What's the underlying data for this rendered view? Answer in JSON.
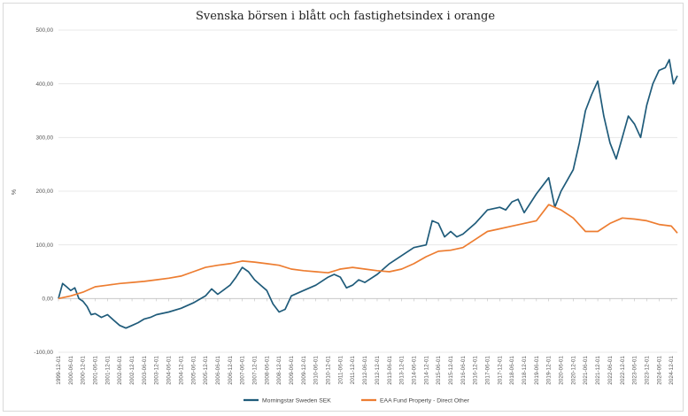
{
  "chart_data": {
    "type": "line",
    "title": "Svenska börsen i blått och fastighetsindex i orange",
    "ylabel": "%",
    "xlabel": "",
    "ylim": [
      -100,
      500
    ],
    "yticks": [
      "-100,00",
      "0,00",
      "100,00",
      "200,00",
      "300,00",
      "400,00",
      "500,00"
    ],
    "ytick_values": [
      -100,
      0,
      100,
      200,
      300,
      400,
      500
    ],
    "grid": "horizontal",
    "legend": "bottom-center",
    "x_ticks": [
      "1999-12-01",
      "2000-06-01",
      "2000-12-01",
      "2001-06-01",
      "2001-12-01",
      "2002-06-01",
      "2002-12-01",
      "2003-06-01",
      "2003-12-01",
      "2004-06-01",
      "2004-12-01",
      "2005-06-01",
      "2005-12-01",
      "2006-06-01",
      "2006-12-01",
      "2007-06-01",
      "2007-12-01",
      "2008-06-01",
      "2008-12-01",
      "2009-06-01",
      "2009-12-01",
      "2010-06-01",
      "2010-12-01",
      "2011-06-01",
      "2011-12-01",
      "2012-06-01",
      "2012-12-01",
      "2013-06-01",
      "2013-12-01",
      "2014-06-01",
      "2014-12-01",
      "2015-06-01",
      "2015-12-01",
      "2016-06-01",
      "2016-12-01",
      "2017-06-01",
      "2017-12-01",
      "2018-06-01",
      "2018-12-01",
      "2019-06-01",
      "2019-12-01",
      "2020-06-01",
      "2020-12-01",
      "2021-06-01",
      "2021-12-01",
      "2022-06-01",
      "2022-12-01",
      "2023-06-01",
      "2023-12-01",
      "2024-06-01",
      "2024-12-01"
    ],
    "series": [
      {
        "name": "Morningstar Sweden SEK",
        "color": "#1f5b7a",
        "points": [
          [
            "1999-12-01",
            0
          ],
          [
            "2000-02-01",
            28
          ],
          [
            "2000-04-01",
            22
          ],
          [
            "2000-06-01",
            15
          ],
          [
            "2000-08-01",
            20
          ],
          [
            "2000-10-01",
            0
          ],
          [
            "2000-12-01",
            -5
          ],
          [
            "2001-02-01",
            -15
          ],
          [
            "2001-04-01",
            -30
          ],
          [
            "2001-06-01",
            -28
          ],
          [
            "2001-09-01",
            -35
          ],
          [
            "2001-12-01",
            -30
          ],
          [
            "2002-03-01",
            -40
          ],
          [
            "2002-06-01",
            -50
          ],
          [
            "2002-09-01",
            -55
          ],
          [
            "2002-12-01",
            -50
          ],
          [
            "2003-03-01",
            -45
          ],
          [
            "2003-06-01",
            -38
          ],
          [
            "2003-09-01",
            -35
          ],
          [
            "2003-12-01",
            -30
          ],
          [
            "2004-06-01",
            -25
          ],
          [
            "2004-12-01",
            -18
          ],
          [
            "2005-06-01",
            -8
          ],
          [
            "2005-12-01",
            5
          ],
          [
            "2006-03-01",
            18
          ],
          [
            "2006-06-01",
            8
          ],
          [
            "2006-12-01",
            25
          ],
          [
            "2007-03-01",
            40
          ],
          [
            "2007-06-01",
            58
          ],
          [
            "2007-09-01",
            50
          ],
          [
            "2007-12-01",
            35
          ],
          [
            "2008-03-01",
            25
          ],
          [
            "2008-06-01",
            15
          ],
          [
            "2008-09-01",
            -10
          ],
          [
            "2008-12-01",
            -25
          ],
          [
            "2009-03-01",
            -20
          ],
          [
            "2009-06-01",
            5
          ],
          [
            "2009-12-01",
            15
          ],
          [
            "2010-06-01",
            25
          ],
          [
            "2010-12-01",
            40
          ],
          [
            "2011-03-01",
            45
          ],
          [
            "2011-06-01",
            40
          ],
          [
            "2011-09-01",
            20
          ],
          [
            "2011-12-01",
            25
          ],
          [
            "2012-03-01",
            35
          ],
          [
            "2012-06-01",
            30
          ],
          [
            "2012-12-01",
            45
          ],
          [
            "2013-06-01",
            65
          ],
          [
            "2013-12-01",
            80
          ],
          [
            "2014-06-01",
            95
          ],
          [
            "2014-12-01",
            100
          ],
          [
            "2015-03-01",
            145
          ],
          [
            "2015-06-01",
            140
          ],
          [
            "2015-09-01",
            115
          ],
          [
            "2015-12-01",
            125
          ],
          [
            "2016-03-01",
            115
          ],
          [
            "2016-06-01",
            120
          ],
          [
            "2016-12-01",
            140
          ],
          [
            "2017-06-01",
            165
          ],
          [
            "2017-12-01",
            170
          ],
          [
            "2018-03-01",
            165
          ],
          [
            "2018-06-01",
            180
          ],
          [
            "2018-09-01",
            185
          ],
          [
            "2018-12-01",
            160
          ],
          [
            "2019-06-01",
            195
          ],
          [
            "2019-12-01",
            225
          ],
          [
            "2020-03-01",
            170
          ],
          [
            "2020-06-01",
            200
          ],
          [
            "2020-09-01",
            220
          ],
          [
            "2020-12-01",
            240
          ],
          [
            "2021-03-01",
            290
          ],
          [
            "2021-06-01",
            350
          ],
          [
            "2021-09-01",
            380
          ],
          [
            "2021-12-01",
            405
          ],
          [
            "2022-03-01",
            340
          ],
          [
            "2022-06-01",
            290
          ],
          [
            "2022-09-01",
            260
          ],
          [
            "2022-12-01",
            300
          ],
          [
            "2023-03-01",
            340
          ],
          [
            "2023-06-01",
            325
          ],
          [
            "2023-09-01",
            300
          ],
          [
            "2023-12-01",
            360
          ],
          [
            "2024-03-01",
            400
          ],
          [
            "2024-06-01",
            425
          ],
          [
            "2024-09-01",
            430
          ],
          [
            "2024-11-01",
            445
          ],
          [
            "2025-01-01",
            400
          ],
          [
            "2025-03-01",
            415
          ]
        ]
      },
      {
        "name": "EAA Fund Property - Direct Other",
        "color": "#ed7d31",
        "points": [
          [
            "1999-12-01",
            0
          ],
          [
            "2000-06-01",
            5
          ],
          [
            "2000-12-01",
            12
          ],
          [
            "2001-06-01",
            22
          ],
          [
            "2001-12-01",
            25
          ],
          [
            "2002-06-01",
            28
          ],
          [
            "2002-12-01",
            30
          ],
          [
            "2003-06-01",
            32
          ],
          [
            "2003-12-01",
            35
          ],
          [
            "2004-06-01",
            38
          ],
          [
            "2004-12-01",
            42
          ],
          [
            "2005-06-01",
            50
          ],
          [
            "2005-12-01",
            58
          ],
          [
            "2006-06-01",
            62
          ],
          [
            "2006-12-01",
            65
          ],
          [
            "2007-06-01",
            70
          ],
          [
            "2007-12-01",
            68
          ],
          [
            "2008-06-01",
            65
          ],
          [
            "2008-12-01",
            62
          ],
          [
            "2009-06-01",
            55
          ],
          [
            "2009-12-01",
            52
          ],
          [
            "2010-06-01",
            50
          ],
          [
            "2010-12-01",
            48
          ],
          [
            "2011-06-01",
            55
          ],
          [
            "2011-12-01",
            58
          ],
          [
            "2012-06-01",
            55
          ],
          [
            "2012-12-01",
            52
          ],
          [
            "2013-06-01",
            50
          ],
          [
            "2013-12-01",
            55
          ],
          [
            "2014-06-01",
            65
          ],
          [
            "2014-12-01",
            78
          ],
          [
            "2015-06-01",
            88
          ],
          [
            "2015-12-01",
            90
          ],
          [
            "2016-06-01",
            95
          ],
          [
            "2016-12-01",
            110
          ],
          [
            "2017-06-01",
            125
          ],
          [
            "2017-12-01",
            130
          ],
          [
            "2018-06-01",
            135
          ],
          [
            "2018-12-01",
            140
          ],
          [
            "2019-06-01",
            145
          ],
          [
            "2019-12-01",
            175
          ],
          [
            "2020-06-01",
            165
          ],
          [
            "2020-12-01",
            150
          ],
          [
            "2021-06-01",
            125
          ],
          [
            "2021-12-01",
            125
          ],
          [
            "2022-06-01",
            140
          ],
          [
            "2022-12-01",
            150
          ],
          [
            "2023-06-01",
            148
          ],
          [
            "2023-12-01",
            145
          ],
          [
            "2024-06-01",
            138
          ],
          [
            "2024-12-01",
            135
          ],
          [
            "2025-03-01",
            122
          ]
        ]
      }
    ]
  }
}
